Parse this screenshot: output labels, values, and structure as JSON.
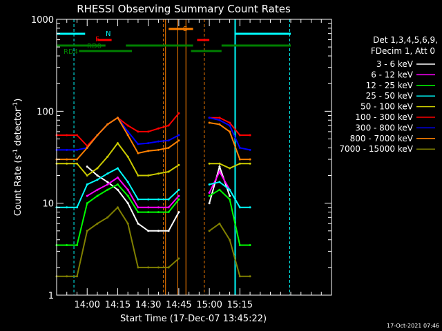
{
  "chart_data": {
    "type": "line",
    "title": "RHESSI Observing Summary Count Rates",
    "xlabel": "Start Time (17-Dec-07 13:45:22)",
    "ylabel": "Count Rate (s⁻¹ detector⁻¹)",
    "ylabel_main": "Count Rate (s",
    "ylabel_sup1": "-1",
    "ylabel_mid": " detector",
    "ylabel_sup2": "-1",
    "ylabel_end": ")",
    "y_scale": "log",
    "ylim": [
      1,
      1000
    ],
    "y_ticks": [
      {
        "value": 1,
        "label": "1"
      },
      {
        "value": 10,
        "label": "10"
      },
      {
        "value": 100,
        "label": "100"
      },
      {
        "value": 1000,
        "label": "1000"
      }
    ],
    "xlim": [
      825,
      960
    ],
    "x_ticks": [
      {
        "value": 840,
        "label": "14:00"
      },
      {
        "value": 855,
        "label": "14:15"
      },
      {
        "value": 870,
        "label": "14:30"
      },
      {
        "value": 885,
        "label": "14:45"
      },
      {
        "value": 900,
        "label": "15:00"
      },
      {
        "value": 915,
        "label": "15:15"
      }
    ],
    "legend_header": [
      "Det 1,3,4,5,6,9,",
      "FDecim 1, Att 0"
    ],
    "legend_position": "right",
    "timestamp": "17-Oct-2021 07:46",
    "x": [
      825,
      830,
      835,
      840,
      845,
      850,
      855,
      860,
      865,
      870,
      875,
      880,
      885,
      895,
      900,
      905,
      910,
      915,
      920
    ],
    "data_gaps": [
      [
        889,
        895
      ]
    ],
    "series": [
      {
        "name": "3 - 6 keV",
        "color": "#ffffff",
        "values": [
          null,
          null,
          null,
          25,
          20,
          17,
          14,
          10,
          6,
          5,
          5,
          5,
          8,
          null,
          10,
          25,
          12,
          null,
          null
        ]
      },
      {
        "name": "6 - 12 keV",
        "color": "#ff00ff",
        "values": [
          null,
          null,
          null,
          12,
          14,
          16,
          19,
          14,
          9,
          9,
          9,
          9,
          12,
          null,
          13,
          22,
          14,
          null,
          null
        ]
      },
      {
        "name": "12 - 25 keV",
        "color": "#00ff00",
        "values": [
          3.5,
          3.5,
          3.5,
          10,
          12,
          14,
          16,
          12,
          8,
          8,
          8,
          8,
          11,
          null,
          12,
          14,
          11,
          3.5,
          3.5
        ]
      },
      {
        "name": "25 - 50 keV",
        "color": "#00ffff",
        "values": [
          9,
          9,
          9,
          16,
          18,
          21,
          24,
          17,
          11,
          11,
          11,
          11,
          14,
          null,
          16,
          17,
          14,
          9,
          9
        ]
      },
      {
        "name": "50 - 100 keV",
        "color": "#cccc00",
        "values": [
          27,
          27,
          27,
          20,
          24,
          32,
          45,
          32,
          20,
          20,
          21,
          22,
          26,
          null,
          27,
          27,
          24,
          27,
          27
        ]
      },
      {
        "name": "100 - 300 keV",
        "color": "#ff0000",
        "values": [
          55,
          55,
          55,
          42,
          55,
          72,
          85,
          70,
          60,
          60,
          65,
          70,
          95,
          null,
          85,
          85,
          75,
          55,
          55
        ]
      },
      {
        "name": "300 - 800 keV",
        "color": "#0000ff",
        "values": [
          38,
          38,
          38,
          40,
          55,
          72,
          85,
          60,
          44,
          45,
          47,
          48,
          55,
          null,
          85,
          80,
          70,
          40,
          38
        ]
      },
      {
        "name": "800 - 7000 keV",
        "color": "#ff8000",
        "values": [
          30,
          30,
          30,
          40,
          55,
          72,
          85,
          55,
          35,
          37,
          38,
          40,
          48,
          null,
          75,
          72,
          60,
          30,
          30
        ]
      },
      {
        "name": "7000 - 15000 keV",
        "color": "#808000",
        "values": [
          1.6,
          1.6,
          1.6,
          5,
          6,
          7,
          9,
          6,
          2,
          2,
          2,
          2,
          2.5,
          null,
          5,
          6,
          4,
          1.6,
          1.6
        ]
      }
    ]
  },
  "flags": {
    "n_label": "N",
    "f_label": "F",
    "rd0_label": "RD0",
    "rd4_label": "RD4",
    "s_label": "S",
    "colors": {
      "N": "#00ffff",
      "F": "#ff0000",
      "RD0": "#008000",
      "RD4": "#008000",
      "S": "#ff8000"
    }
  }
}
